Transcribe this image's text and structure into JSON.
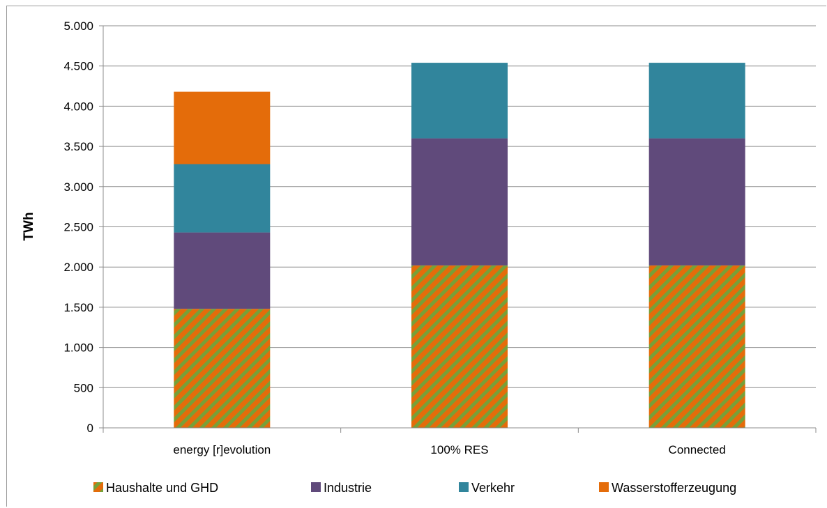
{
  "chart_data": {
    "type": "bar",
    "stacked": true,
    "categories": [
      "energy [r]evolution",
      "100% RES",
      "Connected"
    ],
    "series": [
      {
        "name": "Haushalte und GHD",
        "values": [
          1480,
          2020,
          2020
        ],
        "color": "#e46c0a",
        "pattern": "diagonal-hatch",
        "hatch_color": "#77a038"
      },
      {
        "name": "Industrie",
        "values": [
          950,
          1580,
          1580
        ],
        "color": "#604a7b"
      },
      {
        "name": "Verkehr",
        "values": [
          850,
          940,
          940
        ],
        "color": "#31859c"
      },
      {
        "name": "Wasserstofferzeugung",
        "values": [
          900,
          0,
          0
        ],
        "color": "#e46c0a"
      }
    ],
    "ylabel": "TWh",
    "xlabel": "",
    "ylim": [
      0,
      5000
    ],
    "yticks": [
      0,
      500,
      1000,
      1500,
      2000,
      2500,
      3000,
      3500,
      4000,
      4500,
      5000
    ],
    "ytick_labels": [
      "0",
      "500",
      "1.000",
      "1.500",
      "2.000",
      "2.500",
      "3.000",
      "3.500",
      "4.000",
      "4.500",
      "5.000"
    ],
    "grid": true,
    "legend_position": "bottom"
  }
}
